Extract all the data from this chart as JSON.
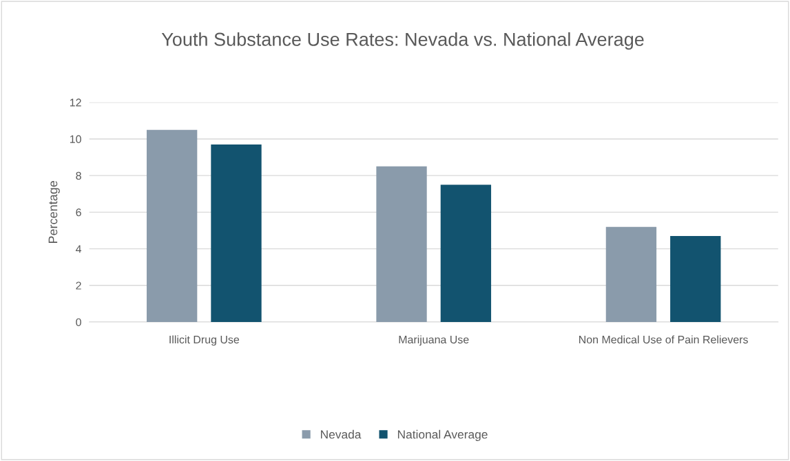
{
  "chart_data": {
    "type": "bar",
    "title": "Youth Substance Use Rates: Nevada vs. National Average",
    "ylabel": "Percentage",
    "categories": [
      "Illicit Drug Use",
      "Marijuana Use",
      "Non Medical Use of Pain Relievers"
    ],
    "series": [
      {
        "name": "Nevada",
        "color": "#8a9bab",
        "values": [
          10.5,
          8.5,
          5.2
        ]
      },
      {
        "name": "National Average",
        "color": "#12536f",
        "values": [
          9.7,
          7.5,
          4.7
        ]
      }
    ],
    "ylim": [
      0,
      12
    ],
    "yticks": [
      0,
      2,
      4,
      6,
      8,
      10,
      12
    ],
    "grid": "y",
    "legend": "bottom"
  }
}
